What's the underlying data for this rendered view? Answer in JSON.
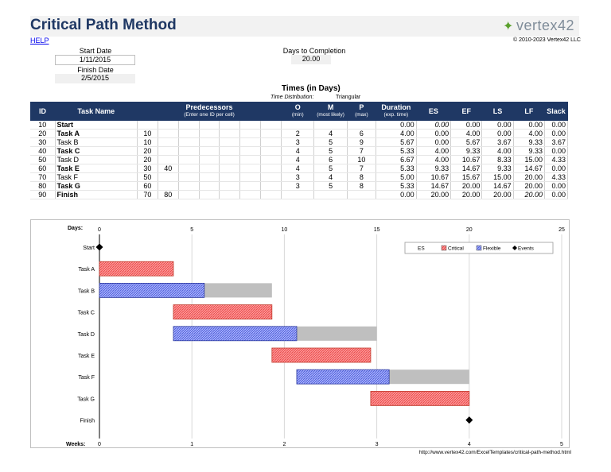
{
  "header": {
    "title": "Critical Path Method",
    "logo": "vertex42",
    "help": "HELP",
    "copyright": "© 2010-2023 Vertex42 LLC"
  },
  "dates": {
    "start_label": "Start Date",
    "start_value": "1/11/2015",
    "finish_label": "Finish Date",
    "finish_value": "2/5/2015",
    "days_label": "Days to Completion",
    "days_value": "20.00"
  },
  "times": {
    "title": "Times (in Days)",
    "dist_label": "Time Distribution:",
    "dist_value": "Triangular"
  },
  "table": {
    "columns": {
      "id": "ID",
      "task": "Task Name",
      "pred": "Predecessors",
      "pred_sub": "(Enter one ID per cell)",
      "o": "O",
      "o_sub": "(min)",
      "m": "M",
      "m_sub": "(most likely)",
      "p": "P",
      "p_sub": "(max)",
      "dur": "Duration",
      "dur_sub": "(exp. time)",
      "es": "ES",
      "ef": "EF",
      "ls": "LS",
      "lf": "LF",
      "slack": "Slack"
    },
    "rows": [
      {
        "id": "10",
        "task": "Start",
        "bold": true,
        "p1": "",
        "p2": "",
        "o": "",
        "m": "",
        "p": "",
        "dur": "0.00",
        "es": "0.00",
        "ef": "0.00",
        "ls": "0.00",
        "lf": "0.00",
        "slack": "0.00"
      },
      {
        "id": "20",
        "task": "Task A",
        "bold": true,
        "p1": "10",
        "p2": "",
        "o": "2",
        "m": "4",
        "p": "6",
        "dur": "4.00",
        "es": "0.00",
        "ef": "4.00",
        "ls": "0.00",
        "lf": "4.00",
        "slack": "0.00"
      },
      {
        "id": "30",
        "task": "Task B",
        "bold": false,
        "p1": "10",
        "p2": "",
        "o": "3",
        "m": "5",
        "p": "9",
        "dur": "5.67",
        "es": "0.00",
        "ef": "5.67",
        "ls": "3.67",
        "lf": "9.33",
        "slack": "3.67"
      },
      {
        "id": "40",
        "task": "Task C",
        "bold": true,
        "p1": "20",
        "p2": "",
        "o": "4",
        "m": "5",
        "p": "7",
        "dur": "5.33",
        "es": "4.00",
        "ef": "9.33",
        "ls": "4.00",
        "lf": "9.33",
        "slack": "0.00"
      },
      {
        "id": "50",
        "task": "Task D",
        "bold": false,
        "p1": "20",
        "p2": "",
        "o": "4",
        "m": "6",
        "p": "10",
        "dur": "6.67",
        "es": "4.00",
        "ef": "10.67",
        "ls": "8.33",
        "lf": "15.00",
        "slack": "4.33"
      },
      {
        "id": "60",
        "task": "Task E",
        "bold": true,
        "p1": "30",
        "p2": "40",
        "o": "4",
        "m": "5",
        "p": "7",
        "dur": "5.33",
        "es": "9.33",
        "ef": "14.67",
        "ls": "9.33",
        "lf": "14.67",
        "slack": "0.00"
      },
      {
        "id": "70",
        "task": "Task F",
        "bold": false,
        "p1": "50",
        "p2": "",
        "o": "3",
        "m": "4",
        "p": "8",
        "dur": "5.00",
        "es": "10.67",
        "ef": "15.67",
        "ls": "15.00",
        "lf": "20.00",
        "slack": "4.33"
      },
      {
        "id": "80",
        "task": "Task G",
        "bold": true,
        "p1": "60",
        "p2": "",
        "o": "3",
        "m": "5",
        "p": "8",
        "dur": "5.33",
        "es": "14.67",
        "ef": "20.00",
        "ls": "14.67",
        "lf": "20.00",
        "slack": "0.00"
      },
      {
        "id": "90",
        "task": "Finish",
        "bold": true,
        "p1": "70",
        "p2": "80",
        "o": "",
        "m": "",
        "p": "",
        "dur": "0.00",
        "es": "20.00",
        "ef": "20.00",
        "ls": "20.00",
        "lf": "20.00",
        "slack": "0.00"
      }
    ]
  },
  "chart_data": {
    "type": "bar",
    "xlabel_top": "Days:",
    "xlabel_bottom": "Weeks:",
    "days_ticks": [
      "0",
      "5",
      "10",
      "15",
      "20",
      "25"
    ],
    "weeks_ticks": [
      "0",
      "1",
      "2",
      "3",
      "4",
      "5"
    ],
    "xlim": [
      0,
      25
    ],
    "legend": [
      "ES",
      "Critical",
      "Flexible",
      "Events"
    ],
    "legend_position": "top-right",
    "colors": {
      "critical": "#e84a4a",
      "flexible": "#4f5fd6",
      "slack": "#bfbfbf",
      "event": "#000000"
    },
    "tasks": [
      {
        "name": "Start",
        "kind": "event",
        "at": 0
      },
      {
        "name": "Task A",
        "kind": "critical",
        "start": 0,
        "end": 4.0
      },
      {
        "name": "Task B",
        "kind": "flexible",
        "start": 0,
        "end": 5.67,
        "slack_end": 9.33
      },
      {
        "name": "Task C",
        "kind": "critical",
        "start": 4.0,
        "end": 9.33
      },
      {
        "name": "Task D",
        "kind": "flexible",
        "start": 4.0,
        "end": 10.67,
        "slack_end": 15.0
      },
      {
        "name": "Task E",
        "kind": "critical",
        "start": 9.33,
        "end": 14.67
      },
      {
        "name": "Task F",
        "kind": "flexible",
        "start": 10.67,
        "end": 15.67,
        "slack_end": 20.0
      },
      {
        "name": "Task G",
        "kind": "critical",
        "start": 14.67,
        "end": 20.0
      },
      {
        "name": "Finish",
        "kind": "event",
        "at": 20.0
      }
    ]
  },
  "footer": {
    "url": "http://www.vertex42.com/ExcelTemplates/critical-path-method.html"
  }
}
